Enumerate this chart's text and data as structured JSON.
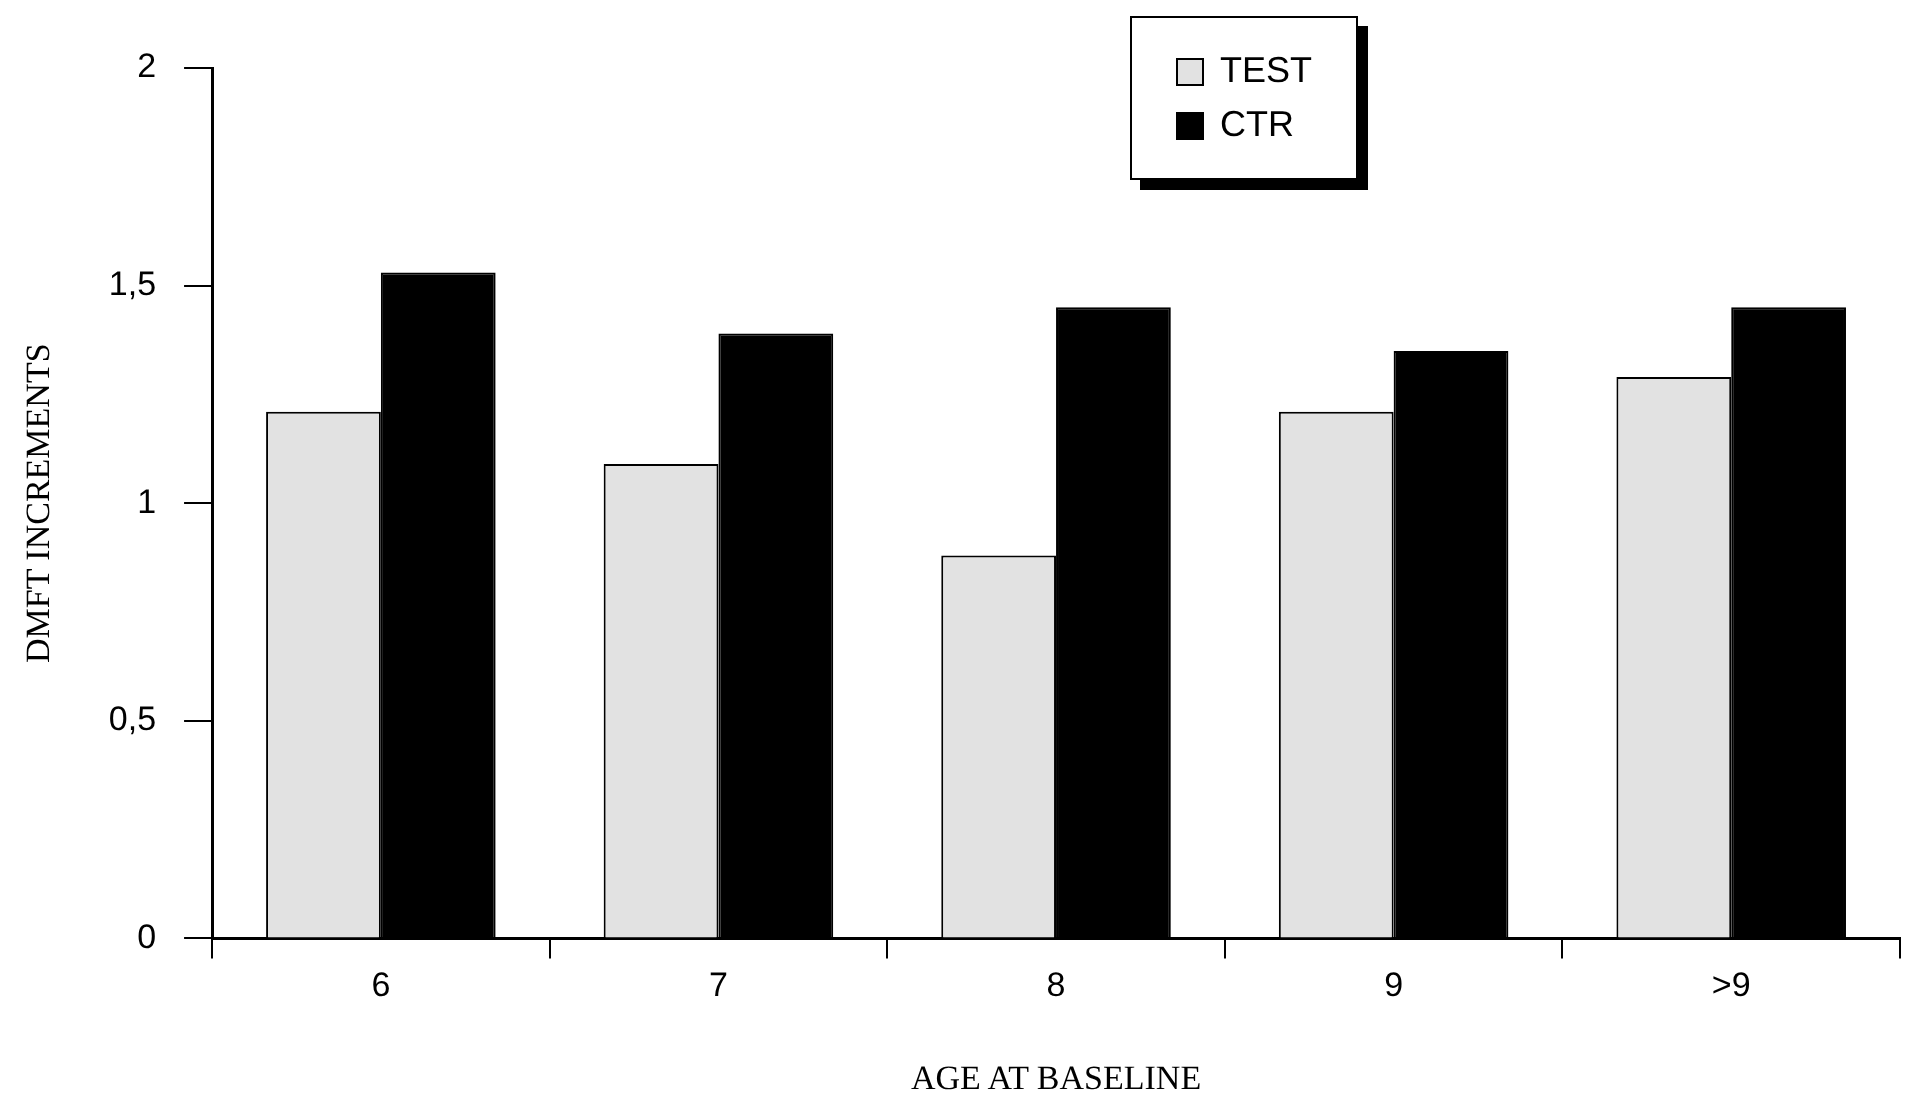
{
  "chart_data": {
    "type": "bar",
    "xlabel": "AGE AT BASELINE",
    "ylabel": "DMFT INCREMENTS",
    "categories": [
      "6",
      "7",
      "8",
      "9",
      ">9"
    ],
    "series": [
      {
        "name": "TEST",
        "color": "#e2e2e2",
        "values": [
          1.21,
          1.09,
          0.88,
          1.21,
          1.29
        ]
      },
      {
        "name": "CTR",
        "color": "#000000",
        "values": [
          1.53,
          1.39,
          1.45,
          1.35,
          1.45
        ]
      }
    ],
    "ylim": [
      0,
      2
    ],
    "yticks": [
      0,
      {
        "value": 0.5,
        "label": "0,5"
      },
      1,
      {
        "value": 1.5,
        "label": "1,5"
      },
      2
    ],
    "legend": "top right"
  }
}
